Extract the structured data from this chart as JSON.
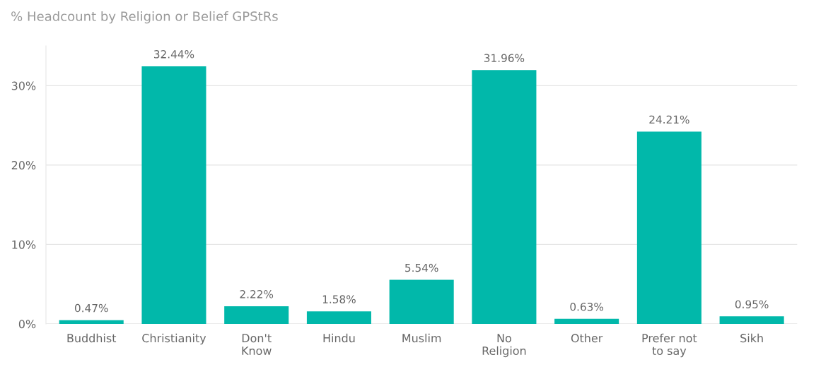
{
  "chart_data": {
    "type": "bar",
    "title": "% Headcount by Religion or Belief GPStRs",
    "categories": [
      "Buddhist",
      "Christianity",
      "Don't\nKnow",
      "Hindu",
      "Muslim",
      "No\nReligion",
      "Other",
      "Prefer not\nto say",
      "Sikh"
    ],
    "values": [
      0.47,
      32.44,
      2.22,
      1.58,
      5.54,
      31.96,
      0.63,
      24.21,
      0.95
    ],
    "value_labels": [
      "0.47%",
      "32.44%",
      "2.22%",
      "1.58%",
      "5.54%",
      "31.96%",
      "0.63%",
      "24.21%",
      "0.95%"
    ],
    "color": "#01b8aa",
    "ylim": [
      0,
      35
    ],
    "yticks": [
      {
        "value": 0,
        "label": "0%"
      },
      {
        "value": 10,
        "label": "10%"
      },
      {
        "value": 20,
        "label": "20%"
      },
      {
        "value": 30,
        "label": "30%"
      }
    ],
    "grid": "y",
    "legend": false
  }
}
